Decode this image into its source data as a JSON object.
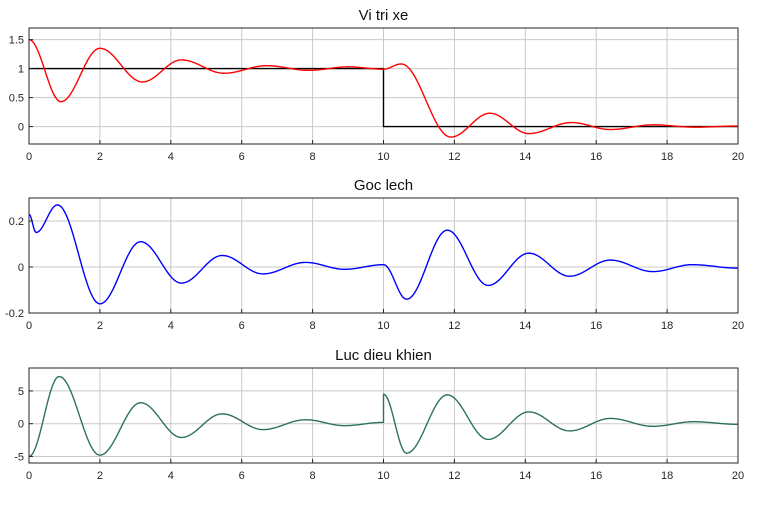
{
  "figure": {
    "background": "#ffffff",
    "grid_color": "#c8c8c8",
    "axis_color": "#262626"
  },
  "chart_data": [
    {
      "type": "line",
      "title": "Vi tri xe",
      "xlim": [
        0,
        20
      ],
      "ylim": [
        -0.3,
        1.7
      ],
      "xticks": [
        0,
        2,
        4,
        6,
        8,
        10,
        12,
        14,
        16,
        18,
        20
      ],
      "yticks": [
        0,
        0.5,
        1,
        1.5
      ],
      "ytick_labels": [
        "0",
        "0.5",
        "1",
        "1.5"
      ],
      "grid": true,
      "series": [
        {
          "color": "#000000",
          "x": [
            0,
            10,
            10,
            20
          ],
          "y": [
            1,
            1,
            0,
            0
          ]
        },
        {
          "color": "#ff0000",
          "x": [
            0,
            0.9,
            2.0,
            3.2,
            4.3,
            5.5,
            6.7,
            7.9,
            9.0,
            10.0,
            10.5,
            11.9,
            13.0,
            14.1,
            15.3,
            16.4,
            17.6,
            18.8,
            20.0
          ],
          "y": [
            1.5,
            0.43,
            1.35,
            0.77,
            1.15,
            0.92,
            1.05,
            0.97,
            1.03,
            0.99,
            1.08,
            -0.18,
            0.23,
            -0.12,
            0.07,
            -0.05,
            0.03,
            -0.01,
            0.01
          ]
        }
      ]
    },
    {
      "type": "line",
      "title": "Goc lech",
      "xlim": [
        0,
        20
      ],
      "ylim": [
        -0.2,
        0.3
      ],
      "xticks": [
        0,
        2,
        4,
        6,
        8,
        10,
        12,
        14,
        16,
        18,
        20
      ],
      "yticks": [
        -0.2,
        0,
        0.2
      ],
      "ytick_labels": [
        "-0.2",
        "0",
        "0.2"
      ],
      "grid": true,
      "series": [
        {
          "color": "#0000ff",
          "x": [
            0,
            0.2,
            0.8,
            2.0,
            3.15,
            4.3,
            5.45,
            6.6,
            7.8,
            8.9,
            10.0,
            10.65,
            11.8,
            12.95,
            14.1,
            15.25,
            16.4,
            17.6,
            18.7,
            20.0
          ],
          "y": [
            0.23,
            0.15,
            0.27,
            -0.16,
            0.11,
            -0.07,
            0.05,
            -0.03,
            0.02,
            -0.01,
            0.01,
            -0.14,
            0.16,
            -0.08,
            0.06,
            -0.04,
            0.03,
            -0.02,
            0.01,
            -0.005
          ]
        }
      ]
    },
    {
      "type": "line",
      "title": "Luc dieu khien",
      "xlim": [
        0,
        20
      ],
      "ylim": [
        -6,
        8.5
      ],
      "xticks": [
        0,
        2,
        4,
        6,
        8,
        10,
        12,
        14,
        16,
        18,
        20
      ],
      "yticks": [
        -5,
        0,
        5
      ],
      "ytick_labels": [
        "-5",
        "0",
        "5"
      ],
      "grid": true,
      "series": [
        {
          "color": "#2e7355",
          "x": [
            0,
            0.85,
            2.0,
            3.15,
            4.3,
            5.45,
            6.6,
            7.8,
            8.9,
            10.0,
            10.0,
            10.65,
            11.8,
            12.95,
            14.1,
            15.25,
            16.4,
            17.6,
            18.75,
            20.0
          ],
          "y": [
            -5,
            7.2,
            -4.8,
            3.2,
            -2.1,
            1.5,
            -0.9,
            0.6,
            -0.3,
            0.2,
            4.5,
            -4.5,
            4.4,
            -2.4,
            1.8,
            -1.1,
            0.8,
            -0.4,
            0.3,
            -0.1
          ]
        }
      ]
    }
  ]
}
